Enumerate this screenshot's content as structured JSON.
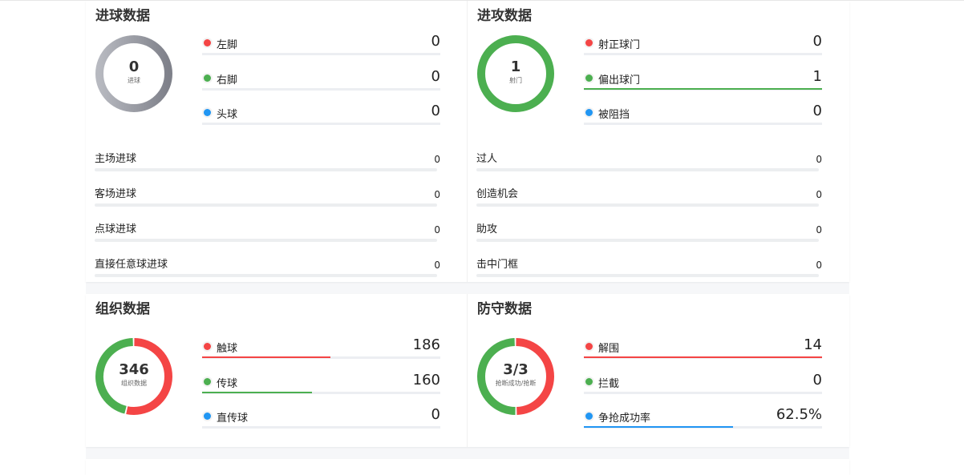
{
  "colors": {
    "red": "#f44545",
    "green": "#4caf50",
    "blue": "#2196f3",
    "gray": "#9a9ca3"
  },
  "goals": {
    "title": "进球数据",
    "center_value": "0",
    "center_label": "进球",
    "legend": [
      {
        "label": "左脚",
        "value": "0",
        "color": "#f44545",
        "fill": 0
      },
      {
        "label": "右脚",
        "value": "0",
        "color": "#4caf50",
        "fill": 0
      },
      {
        "label": "头球",
        "value": "0",
        "color": "#2196f3",
        "fill": 0
      }
    ],
    "stats": [
      {
        "label": "主场进球",
        "value": "0"
      },
      {
        "label": "客场进球",
        "value": "0"
      },
      {
        "label": "点球进球",
        "value": "0"
      },
      {
        "label": "直接任意球进球",
        "value": "0"
      }
    ]
  },
  "attack": {
    "title": "进攻数据",
    "center_value": "1",
    "center_label": "射门",
    "legend": [
      {
        "label": "射正球门",
        "value": "0",
        "color": "#f44545",
        "fill": 0
      },
      {
        "label": "偏出球门",
        "value": "1",
        "color": "#4caf50",
        "fill": 1
      },
      {
        "label": "被阻挡",
        "value": "0",
        "color": "#2196f3",
        "fill": 0
      }
    ],
    "stats": [
      {
        "label": "过人",
        "value": "0"
      },
      {
        "label": "创造机会",
        "value": "0"
      },
      {
        "label": "助攻",
        "value": "0"
      },
      {
        "label": "击中门框",
        "value": "0"
      }
    ]
  },
  "organize": {
    "title": "组织数据",
    "center_value": "346",
    "center_label": "组织数据",
    "legend": [
      {
        "label": "触球",
        "value": "186",
        "color": "#f44545",
        "fill": 0.54
      },
      {
        "label": "传球",
        "value": "160",
        "color": "#4caf50",
        "fill": 0.46
      },
      {
        "label": "直传球",
        "value": "0",
        "color": "#2196f3",
        "fill": 0
      }
    ]
  },
  "defense": {
    "title": "防守数据",
    "center_value": "3/3",
    "center_label": "抢断成功/抢断",
    "legend": [
      {
        "label": "解围",
        "value": "14",
        "color": "#f44545",
        "fill": 1
      },
      {
        "label": "拦截",
        "value": "0",
        "color": "#4caf50",
        "fill": 0
      },
      {
        "label": "争抢成功率",
        "value": "62.5%",
        "color": "#2196f3",
        "fill": 0.625
      }
    ]
  }
}
